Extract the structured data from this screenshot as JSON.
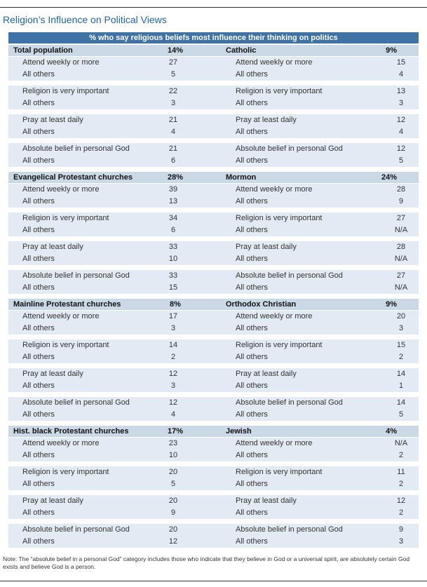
{
  "header": {
    "title": "Religion’s Influence on Political Views",
    "subtitle": "% who say religious beliefs most influence their thinking on politics"
  },
  "blocks": [
    {
      "left": {
        "name": "Total population",
        "pct": "14%",
        "items": [
          [
            "Attend weekly or more",
            27
          ],
          [
            "All others",
            5
          ],
          [
            "Religion is very important",
            22
          ],
          [
            "All others",
            3
          ],
          [
            "Pray at least daily",
            21
          ],
          [
            "All others",
            4
          ],
          [
            "Absolute belief in personal God",
            21
          ],
          [
            "All others",
            6
          ]
        ]
      },
      "right": {
        "name": "Catholic",
        "pct": "9%",
        "items": [
          [
            "Attend weekly or more",
            15
          ],
          [
            "All others",
            4
          ],
          [
            "Religion is very important",
            13
          ],
          [
            "All others",
            3
          ],
          [
            "Pray at least daily",
            12
          ],
          [
            "All others",
            4
          ],
          [
            "Absolute belief in personal God",
            12
          ],
          [
            "All others",
            5
          ]
        ]
      }
    },
    {
      "left": {
        "name": "Evangelical Protestant churches",
        "pct": "28%",
        "items": [
          [
            "Attend weekly or more",
            39
          ],
          [
            "All others",
            13
          ],
          [
            "Religion is very important",
            34
          ],
          [
            "All others",
            6
          ],
          [
            "Pray at least daily",
            33
          ],
          [
            "All others",
            10
          ],
          [
            "Absolute belief in personal God",
            33
          ],
          [
            "All others",
            15
          ]
        ]
      },
      "right": {
        "name": "Mormon",
        "pct": "24%",
        "items": [
          [
            "Attend weekly or more",
            28
          ],
          [
            "All others",
            9
          ],
          [
            "Religion is very important",
            27
          ],
          [
            "All others",
            "N/A"
          ],
          [
            "Pray at least daily",
            28
          ],
          [
            "All others",
            "N/A"
          ],
          [
            "Absolute belief in personal God",
            27
          ],
          [
            "All others",
            "N/A"
          ]
        ]
      }
    },
    {
      "left": {
        "name": "Mainline Protestant churches",
        "pct": "8%",
        "items": [
          [
            "Attend weekly or more",
            17
          ],
          [
            "All others",
            3
          ],
          [
            "Religion is very important",
            14
          ],
          [
            "All others",
            2
          ],
          [
            "Pray at least daily",
            12
          ],
          [
            "All others",
            3
          ],
          [
            "Absolute belief in personal God",
            12
          ],
          [
            "All others",
            4
          ]
        ]
      },
      "right": {
        "name": "Orthodox Christian",
        "pct": "9%",
        "items": [
          [
            "Attend weekly or more",
            20
          ],
          [
            "All others",
            3
          ],
          [
            "Religion is very important",
            15
          ],
          [
            "All others",
            2
          ],
          [
            "Pray at least daily",
            14
          ],
          [
            "All others",
            1
          ],
          [
            "Absolute belief in personal God",
            14
          ],
          [
            "All others",
            5
          ]
        ]
      }
    },
    {
      "left": {
        "name": "Hist. black Protestant churches",
        "pct": "17%",
        "items": [
          [
            "Attend weekly or more",
            23
          ],
          [
            "All others",
            10
          ],
          [
            "Religion is very important",
            20
          ],
          [
            "All others",
            5
          ],
          [
            "Pray at least daily",
            20
          ],
          [
            "All others",
            9
          ],
          [
            "Absolute belief in personal God",
            20
          ],
          [
            "All others",
            12
          ]
        ]
      },
      "right": {
        "name": "Jewish",
        "pct": "4%",
        "items": [
          [
            "Attend weekly or more",
            "N/A"
          ],
          [
            "All others",
            2
          ],
          [
            "Religion is very important",
            11
          ],
          [
            "All others",
            2
          ],
          [
            "Pray at least daily",
            12
          ],
          [
            "All others",
            2
          ],
          [
            "Absolute belief in personal God",
            9
          ],
          [
            "All others",
            3
          ]
        ]
      }
    }
  ],
  "note": "Note: The “absolute belief in a personal God” category includes those who indicate that they believe in God or a universal spirit, are absolutely certain God exists and believe God is a person."
}
